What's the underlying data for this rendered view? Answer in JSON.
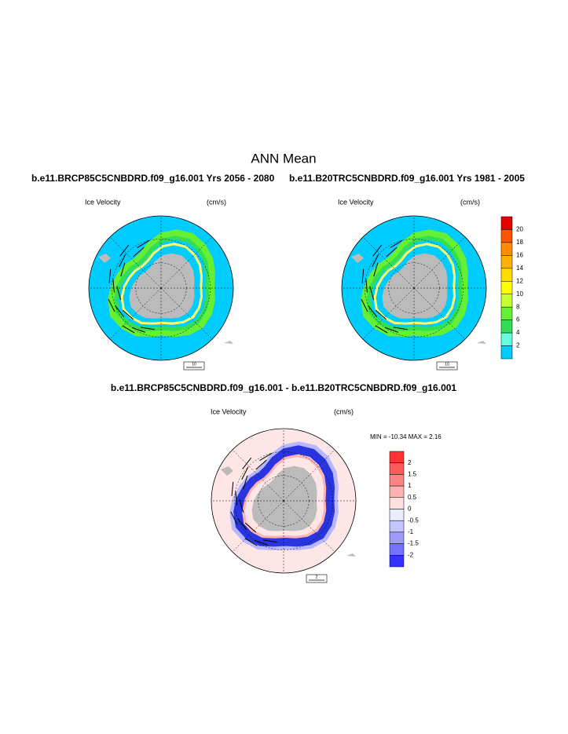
{
  "title": "ANN Mean",
  "panels": [
    {
      "heading": "b.e11.BRCP85C5CNBDRD.f09_g16.001  Yrs 2056 - 2080",
      "field": "Ice Velocity",
      "units": "(cm/s)",
      "ref_label": "10"
    },
    {
      "heading": "b.e11.B20TRC5CNBDRD.f09_g16.001  Yrs 1981 - 2005",
      "field": "Ice Velocity",
      "units": "(cm/s)",
      "ref_label": "10"
    },
    {
      "heading": "b.e11.BRCP85C5CNBDRD.f09_g16.001 - b.e11.B20TRC5CNBDRD.f09_g16.001",
      "field": "Ice Velocity",
      "units": "(cm/s)",
      "ref_label": "2",
      "stats": "MIN = -10.34 MAX =   2.16"
    }
  ],
  "colorbars": [
    {
      "labels": [
        "20",
        "18",
        "16",
        "14",
        "12",
        "10",
        "8",
        "6",
        "4",
        "2"
      ],
      "colors": [
        "#e60000",
        "#ff5500",
        "#ff8c00",
        "#ffb000",
        "#ffdc00",
        "#ffff00",
        "#c8ff33",
        "#66f033",
        "#33dd55",
        "#66ffdd",
        "#00ccff"
      ]
    },
    {
      "labels": [
        "2",
        "1.5",
        "1",
        "0.5",
        "0",
        "-0.5",
        "-1",
        "-1.5",
        "-2"
      ],
      "colors": [
        "#ff3333",
        "#ff5a5a",
        "#ff8585",
        "#ffb2b2",
        "#ffe0e0",
        "#ececff",
        "#c4c4ff",
        "#9c9cff",
        "#7373ff",
        "#3333ff"
      ]
    }
  ]
}
